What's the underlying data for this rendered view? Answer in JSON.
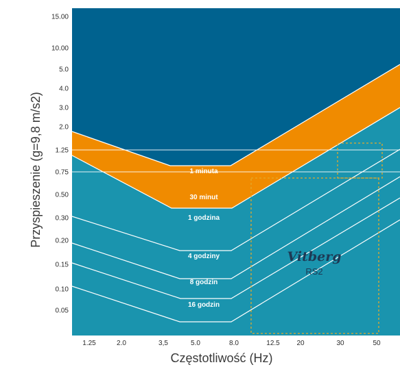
{
  "chart_data": {
    "type": "area",
    "xlabel": "Częstotliwość (Hz)",
    "ylabel": "Przyspieszenie (g=9,8 m/s2)",
    "x_ticks": [
      "1.25",
      "2.0",
      "3,5",
      "5.0",
      "8.0",
      "12.5",
      "20",
      "30",
      "50"
    ],
    "y_ticks": [
      "15.00",
      "10.00",
      "5.0",
      "4.0",
      "3.0",
      "2.0",
      "1.25",
      "0.75",
      "0.50",
      "0.30",
      "0.20",
      "0.15",
      "0.10",
      "0.05"
    ],
    "curves": [
      {
        "label": "1 minuta",
        "points": [
          [
            1.0,
            1.8
          ],
          [
            4.0,
            0.9
          ],
          [
            8.0,
            0.9
          ],
          [
            60,
            5.5
          ]
        ]
      },
      {
        "label": "30 minut",
        "points": [
          [
            1.0,
            1.1
          ],
          [
            4.0,
            0.45
          ],
          [
            8.0,
            0.45
          ],
          [
            60,
            3.3
          ]
        ]
      },
      {
        "label": "1 godzina",
        "points": [
          [
            1.0,
            0.3
          ],
          [
            4.0,
            0.16
          ],
          [
            8.0,
            0.16
          ],
          [
            60,
            1.6
          ]
        ]
      },
      {
        "label": "4 godziny",
        "points": [
          [
            1.0,
            0.19
          ],
          [
            4.0,
            0.1
          ],
          [
            8.0,
            0.1
          ],
          [
            60,
            1.0
          ]
        ]
      },
      {
        "label": "8 godzin",
        "points": [
          [
            1.0,
            0.15
          ],
          [
            4.0,
            0.075
          ],
          [
            8.0,
            0.075
          ],
          [
            60,
            0.65
          ]
        ]
      },
      {
        "label": "16 godzin",
        "points": [
          [
            1.0,
            0.12
          ],
          [
            4.0,
            0.06
          ],
          [
            8.0,
            0.06
          ],
          [
            60,
            0.5
          ]
        ]
      }
    ],
    "reference_lines_y": [
      1.25,
      0.75
    ],
    "dashed_boxes": [
      {
        "x": [
          10.0,
          50.0
        ],
        "y": [
          0.03,
          0.75
        ]
      },
      {
        "x": [
          28.0,
          55.0
        ],
        "y": [
          0.75,
          1.25
        ]
      }
    ],
    "brand": "Vitberg",
    "model": "RS2",
    "colors": {
      "danger_zone": "#00628F",
      "warning_band": "#F08B00",
      "safe_zone": "#1A94AE",
      "lines": "#FFFFFF",
      "dashed": "#E3A92B"
    }
  }
}
